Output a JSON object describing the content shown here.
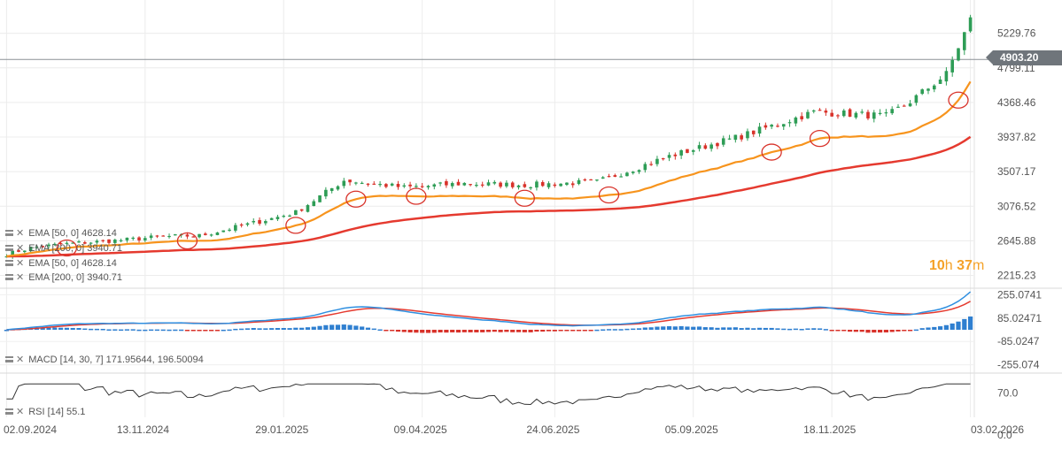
{
  "chart_data": [
    {
      "type": "candlestick",
      "title": "",
      "price_axis_labels": [
        "5229.76",
        "4799.11",
        "4368.46",
        "3937.82",
        "3507.17",
        "3076.52",
        "2645.88",
        "2215.23"
      ],
      "ylim": [
        2100,
        5600
      ],
      "current_price": {
        "label": "4903.20",
        "value": 4903.2
      },
      "x_tick_labels": [
        "02.09.2024",
        "13.11.2024",
        "29.01.2025",
        "09.04.2025",
        "24.06.2025",
        "05.09.2025",
        "18.11.2025",
        "03.02.2026"
      ],
      "x": [
        "2024-09",
        "2024-11",
        "2025-01",
        "2025-03",
        "2025-05",
        "2025-07",
        "2025-09",
        "2025-11",
        "2026-01",
        "2026-02"
      ],
      "close_anchors": {
        "x_index": [
          0,
          4,
          10,
          20,
          26,
          32,
          40,
          48,
          56,
          66,
          76,
          86,
          98,
          110,
          122,
          134,
          146,
          150,
          156,
          160
        ],
        "close": [
          2480,
          2560,
          2610,
          2660,
          2700,
          2710,
          2850,
          3000,
          3400,
          3310,
          3360,
          3340,
          3380,
          3700,
          3950,
          4250,
          4200,
          4380,
          4720,
          5400
        ]
      },
      "series": [
        {
          "name": "EMA [50, 0] 4628.14",
          "color": "#f7941d",
          "last": 4628.14
        },
        {
          "name": "EMA [200, 0] 3940.71",
          "color": "#e53a2f",
          "last": 3940.71
        }
      ],
      "timer": {
        "hours": "10",
        "h_unit": "h",
        "minutes": "37",
        "m_unit": "m"
      }
    },
    {
      "type": "macd",
      "title": "MACD [14, 30, 7] 171.95644, 196.50094",
      "axis_labels": [
        "255.0741",
        "85.02471",
        "-85.0247",
        "-255.074"
      ],
      "ylim": [
        -290,
        290
      ],
      "series": [
        {
          "name": "MACD",
          "color": "#2f8fe0"
        },
        {
          "name": "Signal",
          "color": "#e53a2f"
        },
        {
          "name": "Histogram",
          "color_up": "#2f7fd0",
          "color_down": "#d8322a"
        }
      ]
    },
    {
      "type": "line",
      "title": "RSI [14] 55.1",
      "axis_labels": [
        "70.0",
        "0.0"
      ],
      "ylim": [
        0,
        100
      ],
      "series": [
        {
          "name": "RSI",
          "color": "#333333"
        }
      ]
    }
  ],
  "labels": {
    "ema50": "EMA [50, 0] 4628.14",
    "ema200": "EMA [200, 0] 3940.71",
    "macd": "MACD [14, 30, 7] 171.95644, 196.50094",
    "rsi": "RSI [14] 55.1"
  },
  "colors": {
    "up": "#2e9d56",
    "down": "#d8322a",
    "ema50": "#f7941d",
    "ema200": "#e53a2f",
    "marker": "#d8322a"
  }
}
